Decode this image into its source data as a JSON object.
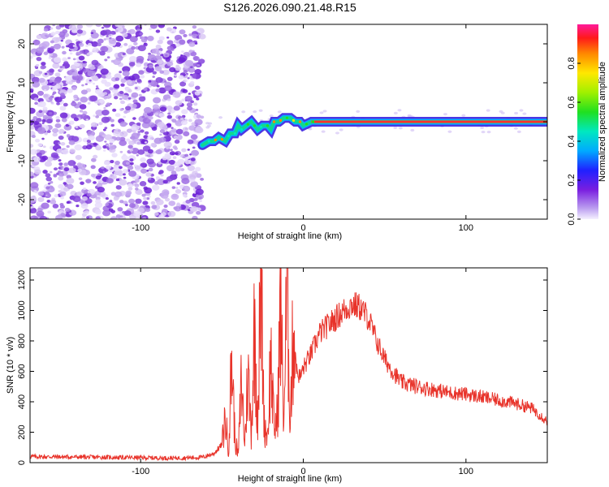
{
  "title": "S126.2026.090.21.48.R15",
  "colorbar": {
    "label": "Normalized spectral amplitude",
    "range": [
      0,
      1
    ],
    "ticks": [
      "0.0",
      "0.2",
      "0.4",
      "0.6",
      "0.8"
    ]
  },
  "chart_data": [
    {
      "type": "heatmap",
      "name": "spectrogram",
      "xlabel": "Height of straight line (km)",
      "ylabel": "Frequency (Hz)",
      "xlim": [
        -168,
        150
      ],
      "ylim": [
        -25,
        25
      ],
      "xticks": [
        -100,
        0,
        100
      ],
      "yticks": [
        -20,
        -10,
        0,
        10,
        20
      ],
      "noise_region_x": [
        -168,
        -62
      ],
      "signal_track": {
        "x": [
          -62,
          -58,
          -55,
          -52,
          -48,
          -45,
          -42,
          -40,
          -38,
          -35,
          -32,
          -30,
          -28,
          -25,
          -22,
          -20,
          -18,
          -15,
          -12,
          -10,
          -8,
          -5,
          -2,
          0,
          5,
          10,
          20,
          40,
          60,
          80,
          100,
          120,
          150
        ],
        "y": [
          -6,
          -5,
          -5,
          -4,
          -5,
          -3,
          -3,
          -1,
          -2,
          -1,
          0,
          -1,
          -2,
          -1,
          -1,
          -2,
          0,
          0,
          1,
          1,
          1,
          0,
          0,
          -1,
          0,
          0,
          0,
          0,
          0,
          0,
          0,
          0,
          0
        ]
      }
    },
    {
      "type": "line",
      "name": "snr",
      "xlabel": "Height of straight line (km)",
      "ylabel": "SNR (10 * v/v)",
      "xlim": [
        -168,
        150
      ],
      "ylim": [
        0,
        1280
      ],
      "xticks": [
        -100,
        0,
        100
      ],
      "yticks": [
        0,
        200,
        400,
        600,
        800,
        1000,
        1200
      ],
      "color": "#e8332a",
      "series": {
        "x": [
          -168,
          -120,
          -80,
          -62,
          -55,
          -50,
          -48,
          -46,
          -44,
          -42,
          -40,
          -38,
          -36,
          -34,
          -32,
          -30,
          -28,
          -26,
          -24,
          -22,
          -20,
          -18,
          -16,
          -14,
          -12,
          -10,
          -8,
          -6,
          -4,
          -2,
          0,
          5,
          10,
          15,
          20,
          25,
          30,
          35,
          40,
          45,
          50,
          55,
          60,
          70,
          80,
          90,
          100,
          110,
          120,
          130,
          140,
          145,
          150
        ],
        "y": [
          40,
          35,
          30,
          35,
          60,
          120,
          300,
          80,
          700,
          150,
          50,
          550,
          120,
          600,
          200,
          900,
          300,
          1270,
          250,
          180,
          700,
          220,
          300,
          1000,
          280,
          1150,
          300,
          900,
          600,
          560,
          620,
          720,
          850,
          900,
          950,
          1000,
          1040,
          1020,
          950,
          800,
          680,
          600,
          530,
          500,
          480,
          460,
          450,
          430,
          410,
          390,
          360,
          320,
          270
        ]
      }
    }
  ]
}
